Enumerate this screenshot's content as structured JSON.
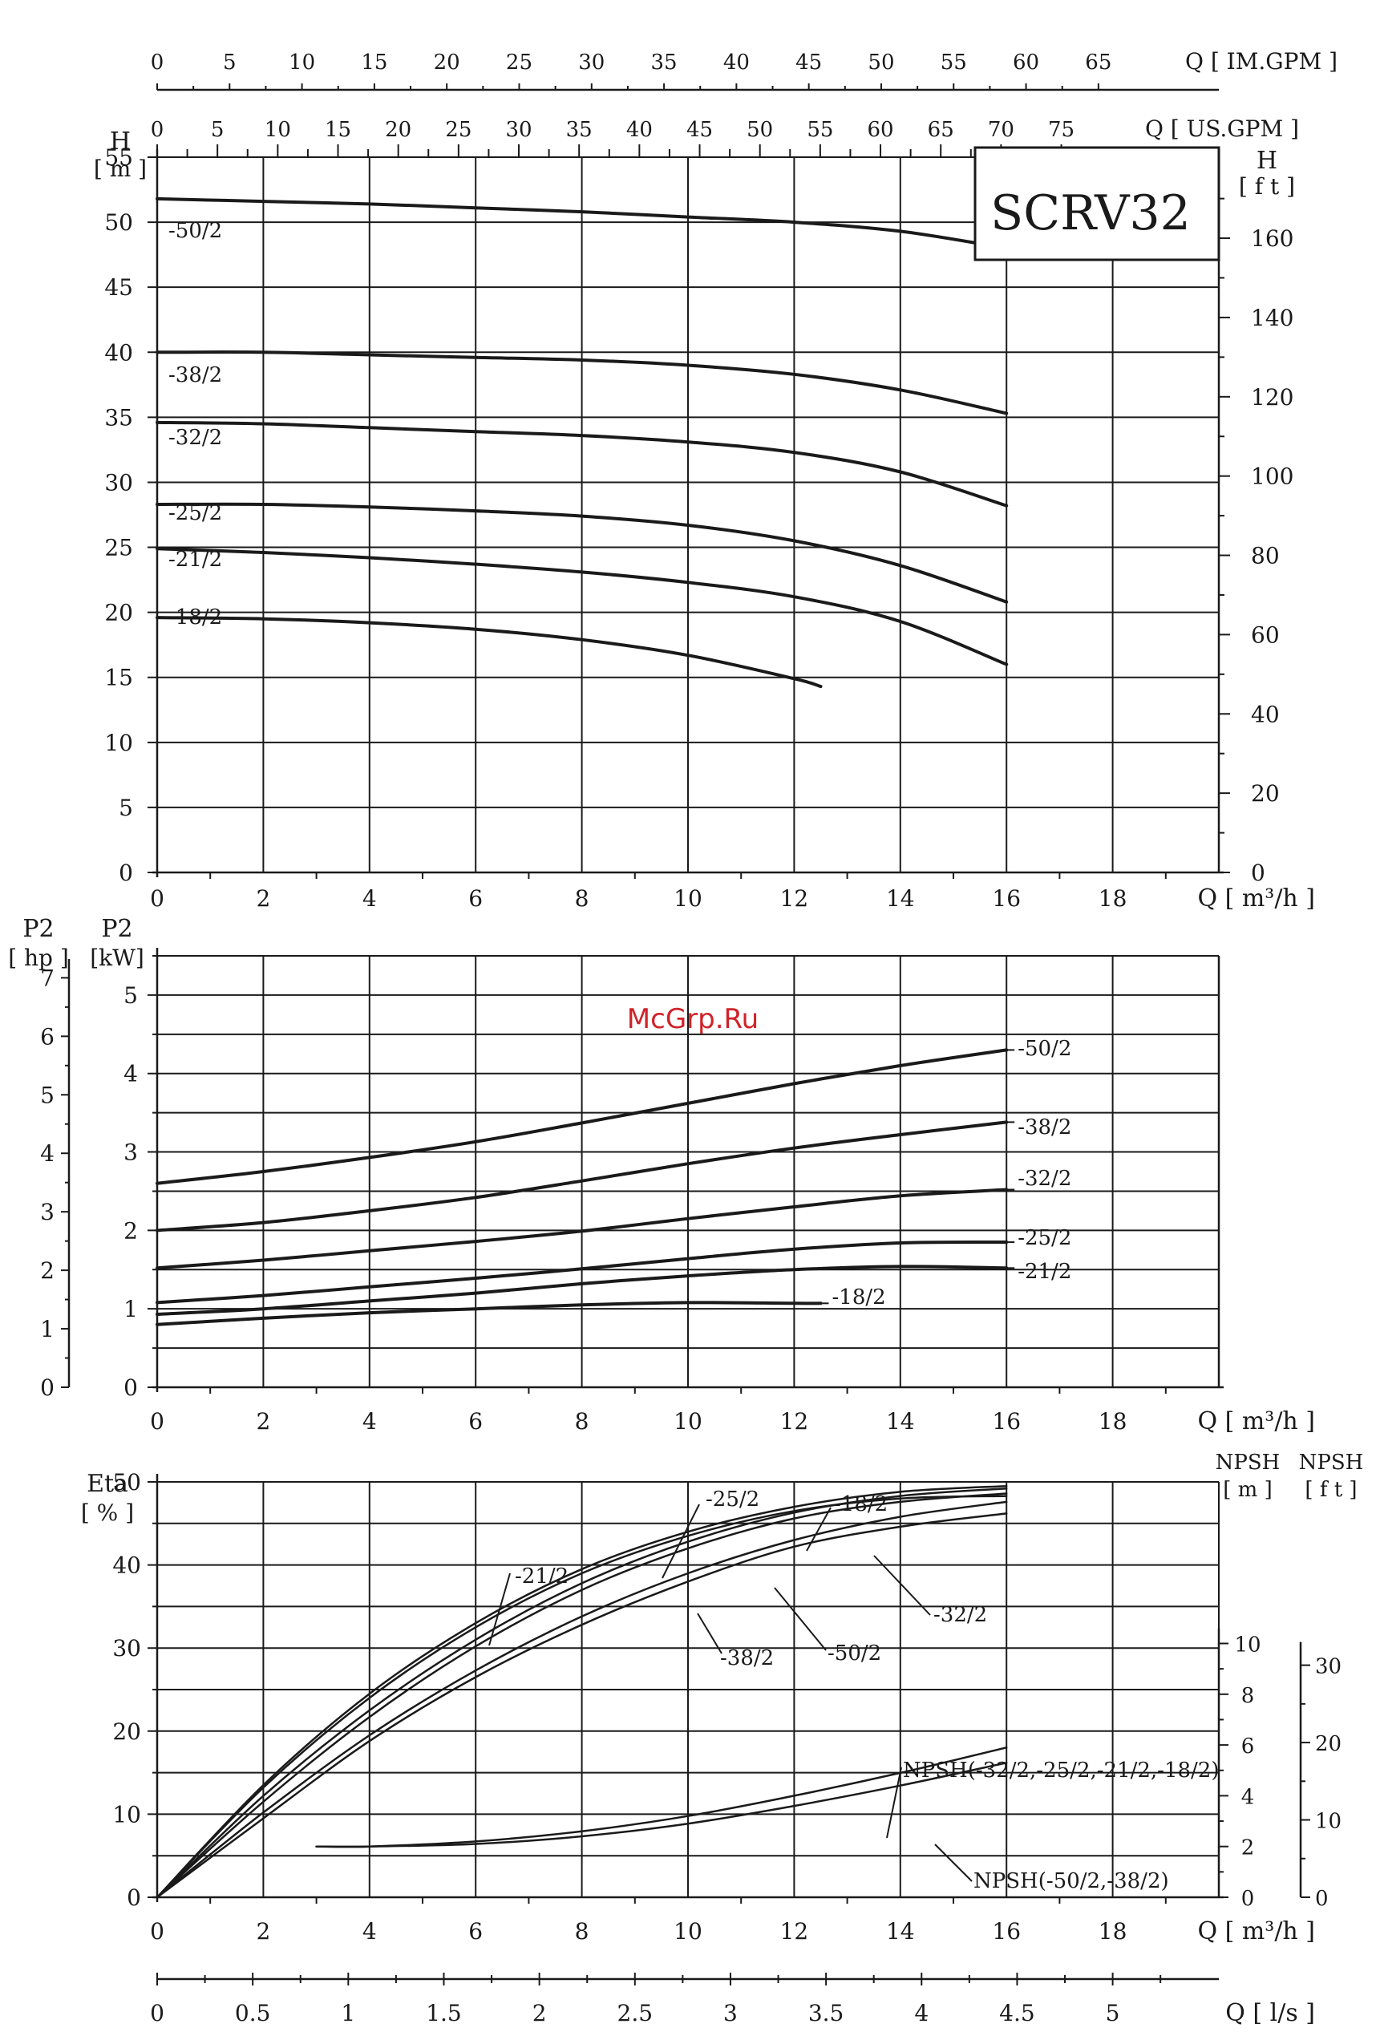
{
  "title": "SCRV32",
  "watermark": "McGrp.Ru",
  "scales": {
    "im_gpm": {
      "label": "Q [ IM.GPM ]",
      "ticks": [
        "0",
        "5",
        "10",
        "15",
        "20",
        "25",
        "30",
        "35",
        "40",
        "45",
        "50",
        "55",
        "60",
        "65"
      ],
      "values": [
        0,
        5,
        10,
        15,
        20,
        25,
        30,
        35,
        40,
        45,
        50,
        55,
        60,
        65
      ]
    },
    "us_gpm": {
      "label": "Q [ US.GPM ]",
      "ticks": [
        "0",
        "5",
        "10",
        "15",
        "20",
        "25",
        "30",
        "35",
        "40",
        "45",
        "50",
        "55",
        "60",
        "65",
        "70",
        "75"
      ],
      "values": [
        0,
        5,
        10,
        15,
        20,
        25,
        30,
        35,
        40,
        45,
        50,
        55,
        60,
        65,
        70,
        75
      ]
    },
    "ls": {
      "label": "Q [ l/s ]",
      "ticks": [
        "0",
        "0.5",
        "1",
        "1.5",
        "2",
        "2.5",
        "3",
        "3.5",
        "4",
        "4.5",
        "5"
      ],
      "values": [
        0,
        0.5,
        1,
        1.5,
        2,
        2.5,
        3,
        3.5,
        4,
        4.5,
        5
      ]
    }
  },
  "chart_data": [
    {
      "type": "line",
      "title": "SCRV32",
      "xlabel": "Q [ m³/h ]",
      "ylabel": "H [ m ]",
      "y2label": "H [ f t ]",
      "xlim": [
        0,
        20
      ],
      "ylim": [
        0,
        55
      ],
      "xticks": [
        "0",
        "2",
        "4",
        "6",
        "8",
        "10",
        "12",
        "14",
        "16",
        "18"
      ],
      "yticks": [
        "0",
        "5",
        "10",
        "15",
        "20",
        "25",
        "30",
        "35",
        "40",
        "45",
        "50",
        "55"
      ],
      "y2ticks": [
        "0",
        "20",
        "40",
        "60",
        "80",
        "100",
        "120",
        "140",
        "160"
      ],
      "y2_values_ft": [
        0,
        20,
        40,
        60,
        80,
        100,
        120,
        140,
        160
      ],
      "grid": true,
      "series": [
        {
          "name": "-50/2",
          "x": [
            0,
            2,
            4,
            6,
            8,
            10,
            12,
            14,
            16
          ],
          "y": [
            51.8,
            51.6,
            51.4,
            51.1,
            50.8,
            50.4,
            50.0,
            49.3,
            48.0
          ]
        },
        {
          "name": "-38/2",
          "x": [
            0,
            2,
            4,
            6,
            8,
            10,
            12,
            14,
            16
          ],
          "y": [
            40.0,
            40.0,
            39.8,
            39.6,
            39.4,
            39.0,
            38.3,
            37.1,
            35.3
          ]
        },
        {
          "name": "-32/2",
          "x": [
            0,
            2,
            4,
            6,
            8,
            10,
            12,
            14,
            16
          ],
          "y": [
            34.6,
            34.5,
            34.2,
            33.9,
            33.6,
            33.1,
            32.3,
            30.8,
            28.2
          ]
        },
        {
          "name": "-25/2",
          "x": [
            0,
            2,
            4,
            6,
            8,
            10,
            12,
            14,
            16
          ],
          "y": [
            28.3,
            28.3,
            28.1,
            27.8,
            27.4,
            26.7,
            25.5,
            23.6,
            20.8
          ]
        },
        {
          "name": "-21/2",
          "x": [
            0,
            2,
            4,
            6,
            8,
            10,
            12,
            14,
            16
          ],
          "y": [
            24.9,
            24.6,
            24.2,
            23.7,
            23.1,
            22.3,
            21.2,
            19.3,
            16.0
          ]
        },
        {
          "name": "-18/2",
          "x": [
            0,
            2,
            4,
            6,
            8,
            10,
            12,
            12.5
          ],
          "y": [
            19.6,
            19.5,
            19.2,
            18.7,
            17.9,
            16.7,
            14.9,
            14.3
          ]
        }
      ]
    },
    {
      "type": "line",
      "xlabel": "Q [ m³/h ]",
      "ylabel": "P2 [kW]",
      "y2label": "P2 [ hp ]",
      "xlim": [
        0,
        20
      ],
      "ylim": [
        0,
        5.5
      ],
      "xticks": [
        "0",
        "2",
        "4",
        "6",
        "8",
        "10",
        "12",
        "14",
        "16",
        "18"
      ],
      "yticks": [
        "0",
        "1",
        "2",
        "3",
        "4",
        "5"
      ],
      "hp_ticks": [
        "0",
        "1",
        "2",
        "3",
        "4",
        "5",
        "6",
        "7"
      ],
      "hp_values": [
        0,
        1,
        2,
        3,
        4,
        5,
        6,
        7
      ],
      "grid": true,
      "series": [
        {
          "name": "-50/2",
          "x": [
            0,
            2,
            4,
            6,
            8,
            10,
            12,
            14,
            16
          ],
          "y": [
            2.6,
            2.75,
            2.93,
            3.13,
            3.37,
            3.62,
            3.87,
            4.1,
            4.3
          ]
        },
        {
          "name": "-38/2",
          "x": [
            0,
            2,
            4,
            6,
            8,
            10,
            12,
            14,
            16
          ],
          "y": [
            2.0,
            2.1,
            2.25,
            2.42,
            2.63,
            2.85,
            3.05,
            3.22,
            3.38
          ]
        },
        {
          "name": "-32/2",
          "x": [
            0,
            2,
            4,
            6,
            8,
            10,
            12,
            14,
            16
          ],
          "y": [
            1.52,
            1.62,
            1.74,
            1.86,
            1.99,
            2.15,
            2.3,
            2.44,
            2.52
          ]
        },
        {
          "name": "-25/2",
          "x": [
            0,
            2,
            4,
            6,
            8,
            10,
            12,
            14,
            16
          ],
          "y": [
            1.08,
            1.17,
            1.28,
            1.39,
            1.51,
            1.64,
            1.76,
            1.84,
            1.85
          ]
        },
        {
          "name": "-21/2",
          "x": [
            0,
            2,
            4,
            6,
            8,
            10,
            12,
            14,
            16
          ],
          "y": [
            0.93,
            1.0,
            1.1,
            1.2,
            1.32,
            1.42,
            1.5,
            1.54,
            1.52
          ]
        },
        {
          "name": "-18/2",
          "x": [
            0,
            2,
            4,
            6,
            8,
            10,
            12,
            12.5
          ],
          "y": [
            0.8,
            0.88,
            0.95,
            1.0,
            1.05,
            1.08,
            1.07,
            1.07
          ]
        }
      ]
    },
    {
      "type": "line",
      "xlabel": "Q [ m³/h ]",
      "ylabel": "Eta [ % ]",
      "y2label": "NPSH [ m ]",
      "y3label": "NPSH [ f t ]",
      "xlim": [
        0,
        20
      ],
      "ylim": [
        0,
        50
      ],
      "xticks": [
        "0",
        "2",
        "4",
        "6",
        "8",
        "10",
        "12",
        "14",
        "16",
        "18"
      ],
      "yticks": [
        "0",
        "10",
        "20",
        "30",
        "40",
        "50"
      ],
      "npsh_m_ticks": [
        "0",
        "2",
        "4",
        "6",
        "8",
        "10"
      ],
      "npsh_m_values": [
        0,
        2,
        4,
        6,
        8,
        10
      ],
      "npsh_ft_ticks": [
        "0",
        "10",
        "20",
        "30"
      ],
      "npsh_ft_values": [
        0,
        10,
        20,
        30
      ],
      "grid": true,
      "series": [
        {
          "name": "-25/2",
          "x": [
            0,
            2,
            4,
            6,
            8,
            10,
            12,
            14,
            16
          ],
          "y": [
            0,
            13.5,
            24.5,
            33,
            39.5,
            44,
            47,
            48.8,
            49.5
          ]
        },
        {
          "name": "-21/2",
          "x": [
            0,
            2,
            4,
            6,
            8,
            10,
            12,
            14,
            16
          ],
          "y": [
            0,
            13.2,
            24,
            32.5,
            39,
            43.5,
            46.5,
            48,
            48.3
          ]
        },
        {
          "name": "-18/2",
          "x": [
            0,
            2,
            4,
            6,
            8,
            10,
            12,
            14,
            16
          ],
          "y": [
            0,
            12.2,
            22.5,
            31,
            37.8,
            42.8,
            46.3,
            48.3,
            49.2
          ]
        },
        {
          "name": "-32/2",
          "x": [
            0,
            2,
            4,
            6,
            8,
            10,
            12,
            14,
            16
          ],
          "y": [
            0,
            11.5,
            21.7,
            30.2,
            37,
            42,
            45.6,
            47.6,
            48.6
          ]
        },
        {
          "name": "-50/2",
          "x": [
            0,
            2,
            4,
            6,
            8,
            10,
            12,
            14,
            16
          ],
          "y": [
            0,
            10.2,
            19.5,
            27.3,
            33.8,
            39,
            43,
            45.8,
            47.6
          ]
        },
        {
          "name": "-38/2",
          "x": [
            0,
            2,
            4,
            6,
            8,
            10,
            12,
            14,
            16
          ],
          "y": [
            0,
            9.5,
            18.8,
            26.5,
            32.8,
            38,
            42.2,
            44.6,
            46.2
          ]
        },
        {
          "name": "NPSH(-32/2,-25/2,-21/2,-18/2)",
          "axis": "npsh_m",
          "x": [
            3,
            4,
            6,
            8,
            10,
            12,
            14,
            16
          ],
          "y": [
            2.0,
            2.0,
            2.2,
            2.6,
            3.2,
            4.0,
            4.9,
            5.9
          ]
        },
        {
          "name": "NPSH(-50/2,-38/2)",
          "axis": "npsh_m",
          "x": [
            3,
            4,
            6,
            8,
            10,
            12,
            14,
            16
          ],
          "y": [
            2.0,
            2.0,
            2.1,
            2.4,
            2.9,
            3.6,
            4.4,
            5.3
          ]
        }
      ]
    }
  ]
}
